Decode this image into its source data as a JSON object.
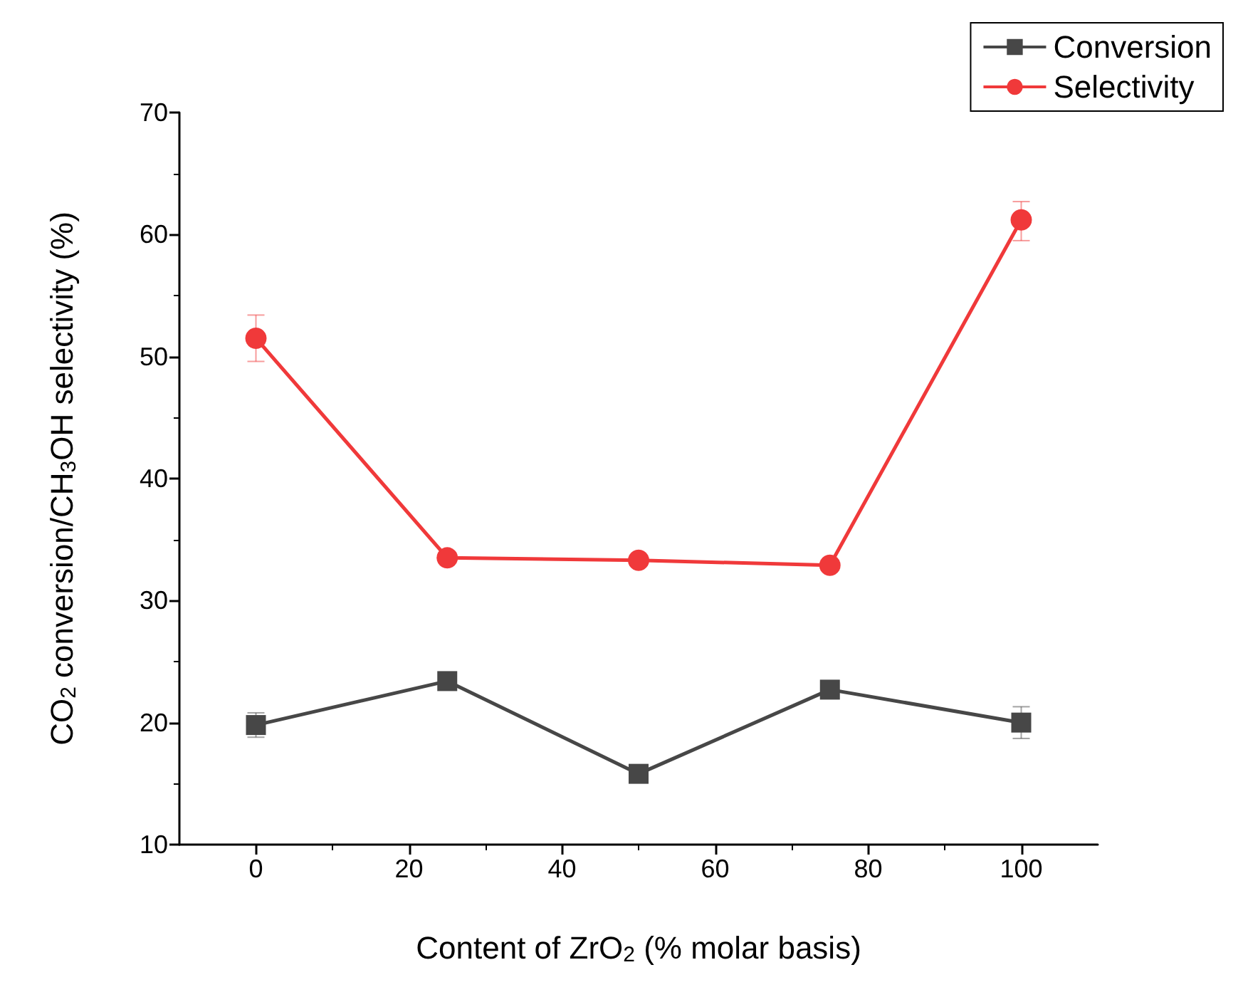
{
  "chart_data": {
    "type": "line",
    "xlabel": "Content of ZrO$_{2}$ (% molar basis)",
    "ylabel": "CO$_{2}$ conversion/CH$_{3}$OH selectivity (%)",
    "x": [
      0,
      25,
      50,
      75,
      100
    ],
    "series": [
      {
        "name": "Conversion",
        "color": "#474747",
        "marker": "square",
        "values": [
          19.8,
          23.4,
          15.8,
          22.7,
          20.0
        ],
        "errors": [
          [
            18.8,
            20.8
          ],
          null,
          null,
          null,
          [
            18.7,
            21.3
          ]
        ]
      },
      {
        "name": "Selectivity",
        "color": "#f0393a",
        "marker": "circle",
        "values": [
          51.5,
          33.5,
          33.3,
          32.9,
          61.2
        ],
        "errors": [
          [
            49.6,
            53.4
          ],
          null,
          null,
          null,
          [
            59.5,
            62.7
          ]
        ]
      }
    ],
    "xlim": [
      -10,
      110
    ],
    "xticks": [
      0,
      20,
      40,
      60,
      80,
      100
    ],
    "ylim": [
      10,
      70
    ],
    "yticks": [
      10,
      20,
      30,
      40,
      50,
      60,
      70
    ],
    "grid": false,
    "legend": "top right",
    "line_style": "solid"
  }
}
